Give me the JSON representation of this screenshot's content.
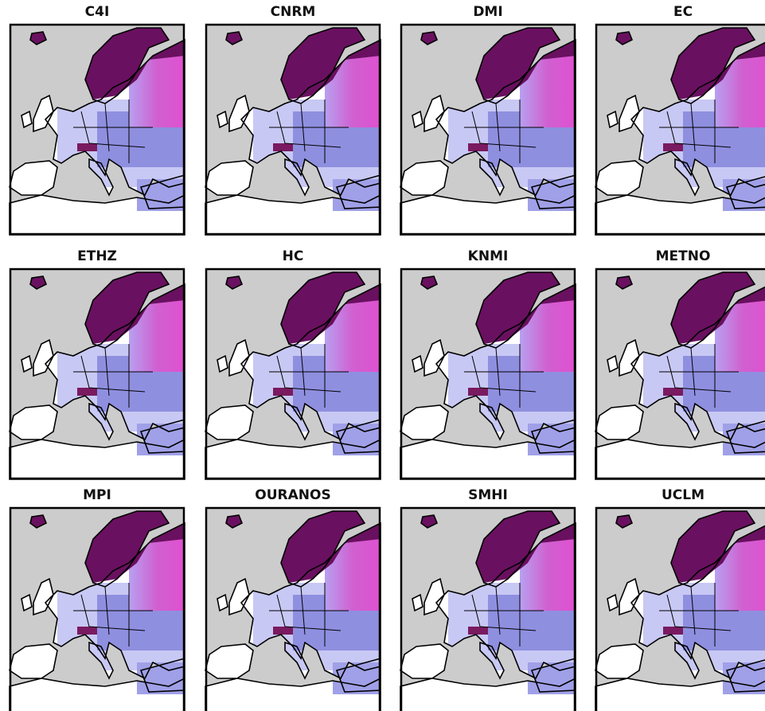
{
  "panels": [
    {
      "title": "C4I"
    },
    {
      "title": "CNRM"
    },
    {
      "title": "DMI"
    },
    {
      "title": "EC"
    },
    {
      "title": "ETHZ"
    },
    {
      "title": "HC"
    },
    {
      "title": "KNMI"
    },
    {
      "title": "METNO"
    },
    {
      "title": "MPI"
    },
    {
      "title": "OURANOS"
    },
    {
      "title": "SMHI"
    },
    {
      "title": "UCLM"
    }
  ]
}
